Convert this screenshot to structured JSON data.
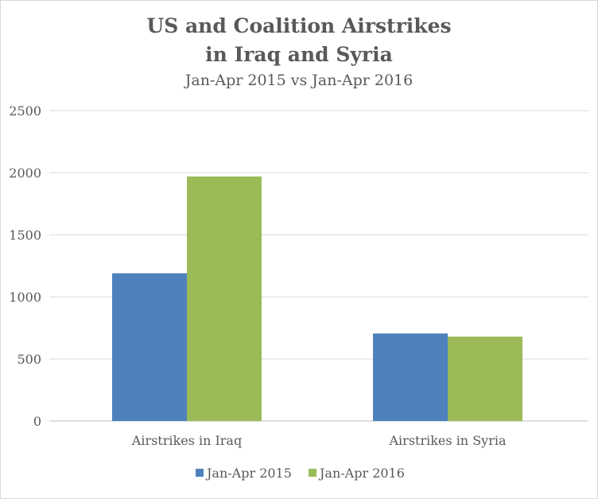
{
  "chart_data": {
    "type": "bar",
    "title": "US and Coalition Airstrikes",
    "title_line2": "in Iraq and Syria",
    "subtitle": "Jan-Apr 2015 vs Jan-Apr 2016",
    "categories": [
      "Airstrikes in Iraq",
      "Airstrikes in Syria"
    ],
    "series": [
      {
        "name": "Jan-Apr 2015",
        "color": "#4f81bd",
        "values": [
          1190,
          705
        ]
      },
      {
        "name": "Jan-Apr 2016",
        "color": "#9bbb59",
        "values": [
          1970,
          680
        ]
      }
    ],
    "yticks": [
      "0",
      "500",
      "1000",
      "1500",
      "2000",
      "2500"
    ],
    "ylim": [
      0,
      2500
    ],
    "xlabel": "",
    "ylabel": "",
    "grid": true,
    "legend": "bottom"
  }
}
